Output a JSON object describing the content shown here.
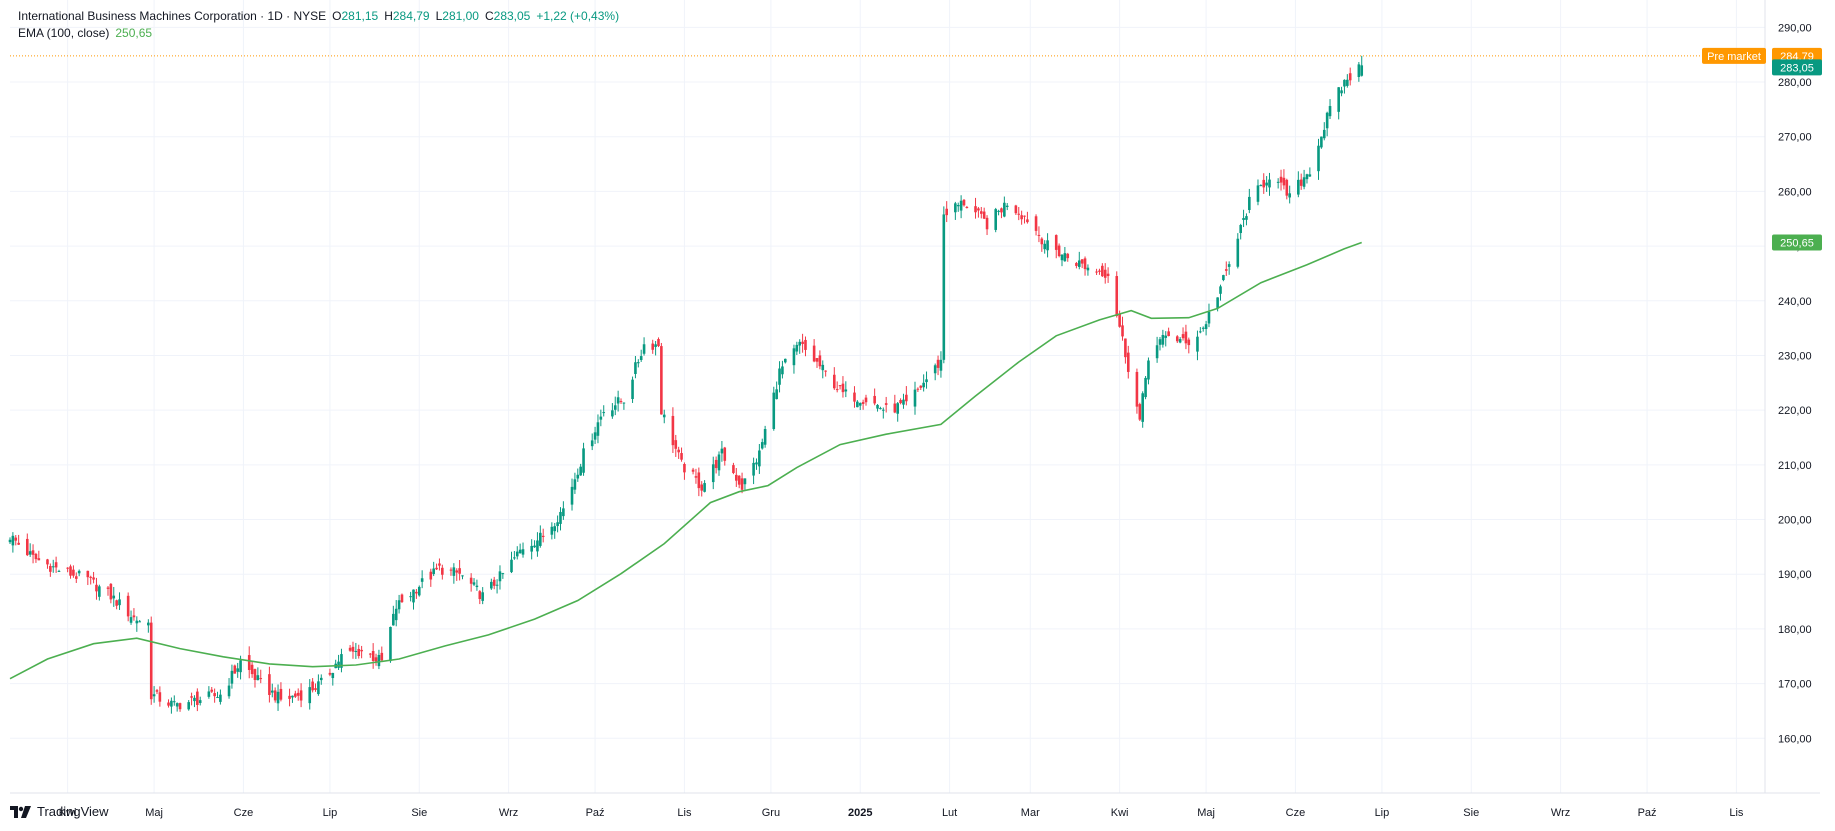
{
  "legend": {
    "symbol": "International Business Machines Corporation · 1D · NYSE",
    "open_label": "O",
    "open": "281,15",
    "high_label": "H",
    "high": "284,79",
    "low_label": "L",
    "low": "281,00",
    "close_label": "C",
    "close": "283,05",
    "change": "+1,22 (+0,43%)",
    "ema_label": "EMA (100, close)",
    "ema_value": "250,65"
  },
  "price_tags": {
    "premarket_label": "Pre market",
    "premarket_value": "284,79",
    "last_value": "283,05",
    "ema_value": "250,65"
  },
  "branding": {
    "logo_text": "TradingView",
    "logo_icon": "tradingview-logo-icon"
  },
  "colors": {
    "up": "#089981",
    "down": "#f23645",
    "ema": "#4caf50",
    "premarket": "#ff9800",
    "grid": "#f0f3fa"
  },
  "chart_data": {
    "type": "candlestick",
    "title": "International Business Machines Corporation · 1D · NYSE",
    "ylim": [
      150,
      295
    ],
    "y_ticks": [
      "160,00",
      "170,00",
      "180,00",
      "190,00",
      "200,00",
      "210,00",
      "220,00",
      "230,00",
      "240,00",
      "250,00",
      "260,00",
      "270,00",
      "280,00",
      "290,00"
    ],
    "x_ticks": [
      "Kwi",
      "Maj",
      "Cze",
      "Lip",
      "Sie",
      "Wrz",
      "Paź",
      "Lis",
      "Gru",
      "2025",
      "Lut",
      "Mar",
      "Kwi",
      "Maj",
      "Cze",
      "Lip",
      "Sie",
      "Wrz",
      "Paź",
      "Lis"
    ],
    "x_tick_dates": [
      "2024-04-01",
      "2024-05-01",
      "2024-06-01",
      "2024-07-01",
      "2024-08-01",
      "2024-09-01",
      "2024-10-01",
      "2024-11-01",
      "2024-12-01",
      "2025-01-01",
      "2025-02-01",
      "2025-03-01",
      "2025-04-01",
      "2025-05-01",
      "2025-06-01",
      "2025-07-01",
      "2025-08-01",
      "2025-09-01",
      "2025-10-01",
      "2025-11-01"
    ],
    "x_range": [
      "2024-03-12",
      "2025-11-30"
    ],
    "series": [
      {
        "kind": "price_path",
        "points": [
          [
            "2024-03-12",
            197
          ],
          [
            "2024-03-20",
            193
          ],
          [
            "2024-03-28",
            191
          ],
          [
            "2024-04-08",
            189
          ],
          [
            "2024-04-16",
            186
          ],
          [
            "2024-04-24",
            182
          ],
          [
            "2024-04-29",
            181
          ],
          [
            "2024-04-30",
            168
          ],
          [
            "2024-05-08",
            166
          ],
          [
            "2024-05-16",
            167
          ],
          [
            "2024-05-24",
            168
          ],
          [
            "2024-05-31",
            174
          ],
          [
            "2024-06-07",
            170
          ],
          [
            "2024-06-14",
            167
          ],
          [
            "2024-06-21",
            168
          ],
          [
            "2024-06-28",
            170
          ],
          [
            "2024-07-05",
            175
          ],
          [
            "2024-07-12",
            176
          ],
          [
            "2024-07-19",
            174
          ],
          [
            "2024-07-24",
            184
          ],
          [
            "2024-08-01",
            188
          ],
          [
            "2024-08-08",
            191
          ],
          [
            "2024-08-15",
            190
          ],
          [
            "2024-08-23",
            186
          ],
          [
            "2024-08-30",
            190
          ],
          [
            "2024-09-06",
            195
          ],
          [
            "2024-09-13",
            197
          ],
          [
            "2024-09-20",
            202
          ],
          [
            "2024-09-27",
            212
          ],
          [
            "2024-10-04",
            220
          ],
          [
            "2024-10-11",
            222
          ],
          [
            "2024-10-18",
            232
          ],
          [
            "2024-10-23",
            232
          ],
          [
            "2024-10-24",
            220
          ],
          [
            "2024-10-31",
            210
          ],
          [
            "2024-11-07",
            206
          ],
          [
            "2024-11-14",
            212
          ],
          [
            "2024-11-21",
            206
          ],
          [
            "2024-11-27",
            212
          ],
          [
            "2024-12-04",
            227
          ],
          [
            "2024-12-11",
            232
          ],
          [
            "2024-12-18",
            228
          ],
          [
            "2024-12-26",
            223
          ],
          [
            "2025-01-03",
            222
          ],
          [
            "2025-01-10",
            220
          ],
          [
            "2025-01-17",
            221
          ],
          [
            "2025-01-23",
            225
          ],
          [
            "2025-01-29",
            229
          ],
          [
            "2025-01-30",
            256
          ],
          [
            "2025-02-06",
            258
          ],
          [
            "2025-02-14",
            254
          ],
          [
            "2025-02-21",
            258
          ],
          [
            "2025-02-28",
            255
          ],
          [
            "2025-03-07",
            250
          ],
          [
            "2025-03-14",
            248
          ],
          [
            "2025-03-21",
            246
          ],
          [
            "2025-03-28",
            245
          ],
          [
            "2025-04-04",
            228
          ],
          [
            "2025-04-08",
            218
          ],
          [
            "2025-04-11",
            230
          ],
          [
            "2025-04-18",
            234
          ],
          [
            "2025-04-24",
            232
          ],
          [
            "2025-04-30",
            235
          ],
          [
            "2025-05-08",
            245
          ],
          [
            "2025-05-16",
            258
          ],
          [
            "2025-05-23",
            263
          ],
          [
            "2025-05-30",
            259
          ],
          [
            "2025-06-06",
            264
          ],
          [
            "2025-06-13",
            275
          ],
          [
            "2025-06-18",
            280
          ],
          [
            "2025-06-24",
            283.05
          ]
        ]
      },
      {
        "name": "EMA (100, close)",
        "kind": "ema",
        "points": [
          [
            "2024-03-12",
            170.9
          ],
          [
            "2024-03-25",
            174.5
          ],
          [
            "2024-04-10",
            177.3
          ],
          [
            "2024-04-25",
            178.3
          ],
          [
            "2024-05-10",
            176.4
          ],
          [
            "2024-05-25",
            174.9
          ],
          [
            "2024-06-10",
            173.6
          ],
          [
            "2024-06-25",
            173.1
          ],
          [
            "2024-07-10",
            173.4
          ],
          [
            "2024-07-25",
            174.5
          ],
          [
            "2024-08-10",
            176.9
          ],
          [
            "2024-08-25",
            178.9
          ],
          [
            "2024-09-10",
            181.8
          ],
          [
            "2024-09-25",
            185.2
          ],
          [
            "2024-10-10",
            190.1
          ],
          [
            "2024-10-25",
            195.6
          ],
          [
            "2024-11-10",
            203.1
          ],
          [
            "2024-11-20",
            205.1
          ],
          [
            "2024-11-30",
            206.2
          ],
          [
            "2024-12-10",
            209.5
          ],
          [
            "2024-12-25",
            213.7
          ],
          [
            "2025-01-10",
            215.6
          ],
          [
            "2025-01-29",
            217.4
          ],
          [
            "2025-02-10",
            222.6
          ],
          [
            "2025-02-25",
            228.8
          ],
          [
            "2025-03-10",
            233.6
          ],
          [
            "2025-03-25",
            236.5
          ],
          [
            "2025-04-05",
            238.2
          ],
          [
            "2025-04-12",
            236.8
          ],
          [
            "2025-04-25",
            236.9
          ],
          [
            "2025-05-05",
            238.6
          ],
          [
            "2025-05-20",
            243.3
          ],
          [
            "2025-06-05",
            246.6
          ],
          [
            "2025-06-18",
            249.5
          ],
          [
            "2025-06-24",
            250.65
          ]
        ]
      }
    ],
    "last": {
      "open": 281.15,
      "high": 284.79,
      "low": 281.0,
      "close": 283.05,
      "change": 1.22,
      "change_pct": 0.43
    },
    "premarket": 284.79,
    "ema_last": 250.65,
    "grid": true,
    "legend_position": "top-left"
  }
}
